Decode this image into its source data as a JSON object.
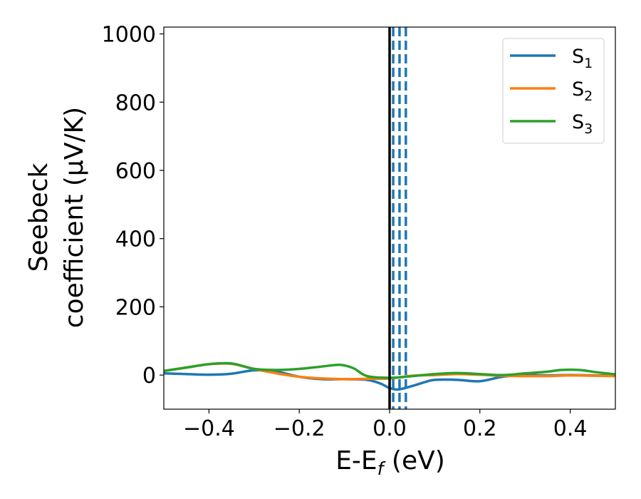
{
  "chart_data": {
    "type": "line",
    "xlabel": {
      "main": "E-E",
      "sub": "f",
      "suffix": " (eV)"
    },
    "ylabel": {
      "line1": "Seebeck",
      "line2": "coefficient  (μV/K)"
    },
    "xlim": [
      -0.5,
      0.5
    ],
    "ylim": [
      -100,
      1020
    ],
    "xticks": [
      -0.4,
      -0.2,
      0.0,
      0.2,
      0.4
    ],
    "xtick_labels": [
      "−0.4",
      "−0.2",
      "0.0",
      "0.2",
      "0.4"
    ],
    "yticks": [
      0,
      200,
      400,
      600,
      800,
      1000
    ],
    "ytick_labels": [
      "0",
      "200",
      "400",
      "600",
      "800",
      "1000"
    ],
    "grid": false,
    "legend_position": "top-right",
    "vertical_line": {
      "x": 0.0,
      "color": "#000000"
    },
    "dashed_lines": {
      "x": [
        0.008,
        0.022,
        0.036
      ],
      "color": "#1f77b4"
    },
    "series": [
      {
        "name": "S",
        "sub": "1",
        "color": "#1f77b4",
        "x": [
          -0.5,
          -0.45,
          -0.4,
          -0.35,
          -0.3,
          -0.25,
          -0.2,
          -0.15,
          -0.1,
          -0.05,
          -0.02,
          0.0,
          0.02,
          0.05,
          0.08,
          0.1,
          0.15,
          0.2,
          0.25,
          0.3,
          0.35,
          0.4,
          0.45,
          0.5
        ],
        "y": [
          5,
          3,
          1,
          4,
          14,
          10,
          -5,
          -12,
          -12,
          -14,
          -25,
          -38,
          -42,
          -32,
          -20,
          -14,
          -14,
          -18,
          -5,
          0,
          -1,
          0,
          -1,
          -2
        ]
      },
      {
        "name": "S",
        "sub": "2",
        "color": "#ff7f0e",
        "x": [
          -0.5,
          -0.45,
          -0.4,
          -0.35,
          -0.3,
          -0.25,
          -0.2,
          -0.15,
          -0.1,
          -0.05,
          0.0,
          0.05,
          0.1,
          0.15,
          0.2,
          0.25,
          0.3,
          0.35,
          0.4,
          0.45,
          0.5
        ],
        "y": [
          12,
          22,
          32,
          33,
          18,
          5,
          -5,
          -10,
          -12,
          -11,
          -10,
          -2,
          0,
          3,
          1,
          -2,
          -3,
          -3,
          -1,
          -2,
          -3
        ]
      },
      {
        "name": "S",
        "sub": "3",
        "color": "#2ca02c",
        "x": [
          -0.5,
          -0.45,
          -0.4,
          -0.35,
          -0.3,
          -0.25,
          -0.2,
          -0.15,
          -0.11,
          -0.08,
          -0.05,
          0.0,
          0.05,
          0.1,
          0.15,
          0.2,
          0.25,
          0.3,
          0.35,
          0.38,
          0.42,
          0.46,
          0.5
        ],
        "y": [
          12,
          22,
          32,
          34,
          18,
          15,
          18,
          25,
          30,
          20,
          -3,
          -8,
          -3,
          3,
          6,
          3,
          0,
          5,
          10,
          15,
          15,
          8,
          2
        ]
      }
    ]
  }
}
